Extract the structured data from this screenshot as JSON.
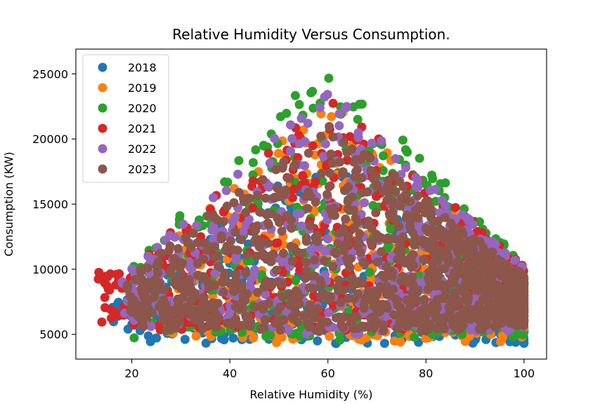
{
  "chart_data": {
    "type": "scatter",
    "title": "Relative Humidity Versus Consumption.",
    "xlabel": "Relative Humidity (%)",
    "ylabel": "Consumption (KW)",
    "xlim": [
      8.6,
      104.6
    ],
    "ylim": [
      3100,
      26900
    ],
    "xticks": [
      20,
      40,
      60,
      80,
      100
    ],
    "yticks": [
      5000,
      10000,
      15000,
      20000,
      25000
    ],
    "grid": false,
    "legend": "top-left",
    "series": [
      {
        "name": "2018",
        "color": "#1f77b4",
        "humidity_range": [
          16,
          100
        ],
        "consumption_range": [
          4200,
          19500
        ]
      },
      {
        "name": "2019",
        "color": "#ff7f0e",
        "humidity_range": [
          27,
          100
        ],
        "consumption_range": [
          4300,
          23200
        ]
      },
      {
        "name": "2020",
        "color": "#2ca02c",
        "humidity_range": [
          20,
          100
        ],
        "consumption_range": [
          4500,
          26000
        ]
      },
      {
        "name": "2021",
        "color": "#d62728",
        "humidity_range": [
          13,
          100
        ],
        "consumption_range": [
          5200,
          23500
        ]
      },
      {
        "name": "2022",
        "color": "#9467bd",
        "humidity_range": [
          18,
          100
        ],
        "consumption_range": [
          5000,
          23800
        ]
      },
      {
        "name": "2023",
        "color": "#8c564b",
        "humidity_range": [
          19,
          100
        ],
        "consumption_range": [
          5200,
          21200
        ]
      }
    ]
  }
}
